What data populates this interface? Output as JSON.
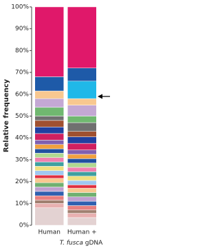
{
  "chart_data": {
    "type": "stacked_bar",
    "y_label": "Relative frequency",
    "categories": [
      "Human",
      "Human +"
    ],
    "annotation": [
      "T. fusca",
      "gDNA"
    ],
    "ylim": [
      0,
      100
    ],
    "yticks": [
      {
        "value": 0,
        "label": "0%"
      },
      {
        "value": 10,
        "label": "10%"
      },
      {
        "value": 20,
        "label": "20%"
      },
      {
        "value": 30,
        "label": "30%"
      },
      {
        "value": 40,
        "label": "40%"
      },
      {
        "value": 50,
        "label": "50%"
      },
      {
        "value": 60,
        "label": "60%"
      },
      {
        "value": 70,
        "label": "70%"
      },
      {
        "value": 80,
        "label": "80%"
      },
      {
        "value": 90,
        "label": "90%"
      },
      {
        "value": 100,
        "label": "100%"
      }
    ],
    "series": [
      {
        "color": "#e3d2d2",
        "values": [
          8,
          3.5
        ]
      },
      {
        "color": "#e8b0b0",
        "values": [
          2,
          2
        ]
      },
      {
        "color": "#a08070",
        "values": [
          1.5,
          1.5
        ]
      },
      {
        "color": "#e88080",
        "values": [
          2,
          2
        ]
      },
      {
        "color": "#3060b0",
        "values": [
          2,
          2
        ]
      },
      {
        "color": "#c0a0d0",
        "values": [
          2,
          2
        ]
      },
      {
        "color": "#70b070",
        "values": [
          2,
          2
        ]
      },
      {
        "color": "#f8c890",
        "values": [
          2,
          2
        ]
      },
      {
        "color": "#e03040",
        "values": [
          1.5,
          1.5
        ]
      },
      {
        "color": "#a0c8f0",
        "values": [
          2,
          2
        ]
      },
      {
        "color": "#f0e080",
        "values": [
          2,
          2
        ]
      },
      {
        "color": "#40a0a0",
        "values": [
          2,
          2
        ]
      },
      {
        "color": "#f080b0",
        "values": [
          2,
          2
        ]
      },
      {
        "color": "#b0d890",
        "values": [
          2,
          2
        ]
      },
      {
        "color": "#2050a0",
        "values": [
          2,
          2
        ]
      },
      {
        "color": "#f0a040",
        "values": [
          2,
          2
        ]
      },
      {
        "color": "#8060b0",
        "values": [
          2,
          2
        ]
      },
      {
        "color": "#d02060",
        "values": [
          3,
          3
        ]
      },
      {
        "color": "#2040a0",
        "values": [
          3,
          3
        ]
      },
      {
        "color": "#a05030",
        "values": [
          3,
          2.5
        ]
      },
      {
        "color": "#707070",
        "values": [
          2,
          4
        ]
      },
      {
        "color": "#70b870",
        "values": [
          4,
          3
        ]
      },
      {
        "color": "#c4a8d4",
        "values": [
          4,
          5
        ]
      },
      {
        "color": "#f8c890",
        "values": [
          3.5,
          3
        ]
      },
      {
        "color": "#20b8e8",
        "values": [
          0,
          8
        ]
      },
      {
        "color": "#1e5aa8",
        "values": [
          6.5,
          6
        ]
      },
      {
        "color": "#e0186a",
        "values": [
          32,
          28
        ]
      }
    ]
  }
}
